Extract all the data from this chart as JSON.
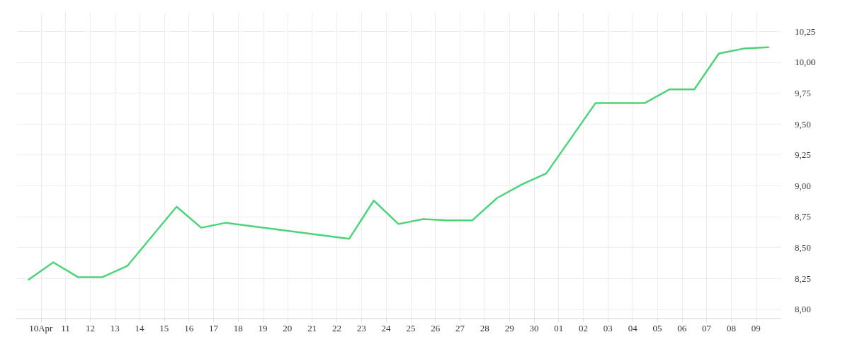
{
  "chart_data": {
    "type": "line",
    "color": "#4cd47a",
    "line_style": "solid",
    "marker": "none",
    "grid": true,
    "x": [
      "--04-09T12:00",
      "--04-10T12:00",
      "--04-11T12:00",
      "--04-12T12:00",
      "--04-13T12:00",
      "--04-15T12:00",
      "--04-16T12:00",
      "--04-17T12:00",
      "--04-22T12:00",
      "--04-23T12:00",
      "--04-24T12:00",
      "--04-25T12:00",
      "--04-26T12:00",
      "--04-27T12:00",
      "--04-28T12:00",
      "--04-29T12:00",
      "--04-30T12:00",
      "--05-02T12:00",
      "--05-04T12:00",
      "--05-05T12:00",
      "--05-06T12:00",
      "--05-07T12:00",
      "--05-08T12:00",
      "--05-09T12:00"
    ],
    "values": [
      8.24,
      8.38,
      8.26,
      8.26,
      8.35,
      8.83,
      8.66,
      8.7,
      8.57,
      8.88,
      8.69,
      8.73,
      8.72,
      8.72,
      8.9,
      9.01,
      9.1,
      9.67,
      9.67,
      9.78,
      9.78,
      10.07,
      10.11,
      10.12
    ],
    "xlim": [
      "--04-09",
      "--05-10"
    ],
    "xticks": [
      {
        "value": "--04-10",
        "label": "10Apr"
      },
      {
        "value": "--04-11",
        "label": "11"
      },
      {
        "value": "--04-12",
        "label": "12"
      },
      {
        "value": "--04-13",
        "label": "13"
      },
      {
        "value": "--04-14",
        "label": "14"
      },
      {
        "value": "--04-15",
        "label": "15"
      },
      {
        "value": "--04-16",
        "label": "16"
      },
      {
        "value": "--04-17",
        "label": "17"
      },
      {
        "value": "--04-18",
        "label": "18"
      },
      {
        "value": "--04-19",
        "label": "19"
      },
      {
        "value": "--04-20",
        "label": "20"
      },
      {
        "value": "--04-21",
        "label": "21"
      },
      {
        "value": "--04-22",
        "label": "22"
      },
      {
        "value": "--04-23",
        "label": "23"
      },
      {
        "value": "--04-24",
        "label": "24"
      },
      {
        "value": "--04-25",
        "label": "25"
      },
      {
        "value": "--04-26",
        "label": "26"
      },
      {
        "value": "--04-27",
        "label": "27"
      },
      {
        "value": "--04-28",
        "label": "28"
      },
      {
        "value": "--04-29",
        "label": "29"
      },
      {
        "value": "--04-30",
        "label": "30"
      },
      {
        "value": "--05-01",
        "label": "01"
      },
      {
        "value": "--05-02",
        "label": "02"
      },
      {
        "value": "--05-03",
        "label": "03"
      },
      {
        "value": "--05-04",
        "label": "04"
      },
      {
        "value": "--05-05",
        "label": "05"
      },
      {
        "value": "--05-06",
        "label": "06"
      },
      {
        "value": "--05-07",
        "label": "07"
      },
      {
        "value": "--05-08",
        "label": "08"
      },
      {
        "value": "--05-09",
        "label": "09"
      }
    ],
    "ylim": [
      7.93,
      10.4
    ],
    "yticks": [
      {
        "value": 8,
        "label": "8,00"
      },
      {
        "value": 8.25,
        "label": "8,25"
      },
      {
        "value": 8.5,
        "label": "8,50"
      },
      {
        "value": 8.75,
        "label": "8,75"
      },
      {
        "value": 9,
        "label": "9,00"
      },
      {
        "value": 9.25,
        "label": "9,25"
      },
      {
        "value": 9.5,
        "label": "9,50"
      },
      {
        "value": 9.75,
        "label": "9,75"
      },
      {
        "value": 10,
        "label": "10,00"
      },
      {
        "value": 10.25,
        "label": "10,25"
      }
    ]
  }
}
